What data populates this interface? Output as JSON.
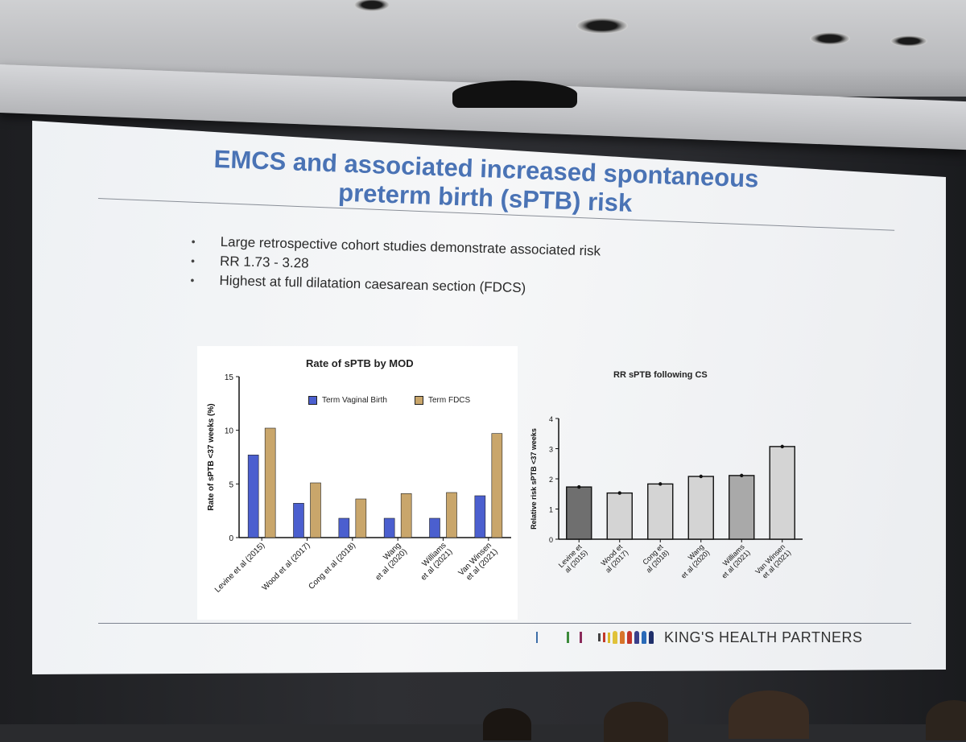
{
  "slide": {
    "title": "EMCS and associated increased spontaneous preterm birth (sPTB) risk",
    "bullets": [
      "Large retrospective cohort studies demonstrate associated risk",
      "RR 1.73 - 3.28",
      "Highest at full dilatation caesarean section (FDCS)"
    ],
    "bullet_symbol": "•",
    "footer_brand": "KING'S HEALTH PARTNERS"
  },
  "colors": {
    "title": "#4a73b5",
    "term_vaginal_birth": "#4b5fcf",
    "term_fdcs": "#c9a66b",
    "rr_bar_dark": "#6f6f6f",
    "rr_bar_light": "#d4d4d4"
  },
  "chart_data": [
    {
      "type": "bar",
      "title": "Rate of sPTB by MOD",
      "ylabel": "Rate of sPTB <37 weeks (%)",
      "xlabel": "",
      "ylim": [
        0,
        15
      ],
      "yticks": [
        "0",
        "5",
        "10",
        "15"
      ],
      "grid": false,
      "legend_placement": "top-right",
      "categories": [
        "Levine et al (2015)",
        "Wood et al (2017)",
        "Cong et al (2018)",
        "Wang et al (2020)",
        "Williams et al (2021)",
        "Van Winsen et al (2021)"
      ],
      "category_lines": [
        [
          "Levine et al (2015)"
        ],
        [
          "Wood et al (2017)"
        ],
        [
          "Cong et al (2018)"
        ],
        [
          "Wang",
          "et al (2020)"
        ],
        [
          "Williams",
          "et al (2021)"
        ],
        [
          "Van Winsen",
          "et al (2021)"
        ]
      ],
      "series": [
        {
          "name": "Term Vaginal Birth",
          "values": [
            7.7,
            3.2,
            1.8,
            1.8,
            1.8,
            3.9
          ]
        },
        {
          "name": "Term FDCS",
          "values": [
            10.2,
            5.1,
            3.6,
            4.1,
            4.2,
            9.7
          ]
        }
      ]
    },
    {
      "type": "bar",
      "title": "RR sPTB following CS",
      "ylabel": "Relative risk sPTB <37 weeks",
      "xlabel": "",
      "ylim": [
        0,
        4
      ],
      "yticks": [
        "0",
        "1",
        "2",
        "3",
        "4"
      ],
      "grid": false,
      "categories": [
        "Levine et al (2015)",
        "Wood et al (2017)",
        "Cong et al (2018)",
        "Wang et al (2020)",
        "Williams et al (2021)",
        "Van Winsen et al (2021)"
      ],
      "category_lines": [
        [
          "Levine et",
          "al (2015)"
        ],
        [
          "Wood et",
          "al (2017)"
        ],
        [
          "Cong et",
          "al (2018)"
        ],
        [
          "Wang",
          "et al (2020)"
        ],
        [
          "Williams",
          "et al (2021)"
        ],
        [
          "Van Winsen",
          "et al (2021)"
        ]
      ],
      "values": [
        1.73,
        1.53,
        1.83,
        2.08,
        2.11,
        3.07
      ]
    }
  ]
}
